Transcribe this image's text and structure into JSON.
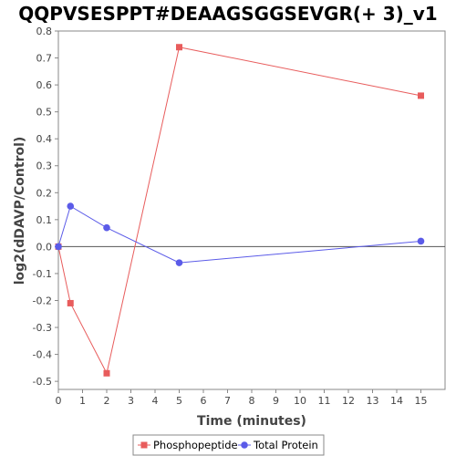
{
  "chart_data": {
    "type": "line",
    "title": "QQPVSESPPT#DEAAGSGGSEVGR(+ 3)_v1",
    "xlabel": "Time (minutes)",
    "ylabel": "log2(dDAVP/Control)",
    "xlim": [
      0,
      16
    ],
    "ylim": [
      -0.53,
      0.8
    ],
    "xticks": [
      0,
      1,
      2,
      3,
      4,
      5,
      6,
      7,
      8,
      9,
      10,
      11,
      12,
      13,
      14,
      15
    ],
    "yticks": [
      -0.5,
      -0.4,
      -0.3,
      -0.2,
      -0.1,
      0.0,
      0.1,
      0.2,
      0.3,
      0.4,
      0.5,
      0.6,
      0.7,
      0.8
    ],
    "ytick_labels": [
      "-0.5",
      "-0.4",
      "-0.3",
      "-0.2",
      "-0.1",
      "0.0",
      "0.1",
      "0.2",
      "0.3",
      "0.4",
      "0.5",
      "0.6",
      "0.7",
      "0.8"
    ],
    "grid": false,
    "zero_line": true,
    "legend_position": "bottom",
    "series": [
      {
        "name": "Phosphopeptide",
        "color": "#e85c5c",
        "marker": "square",
        "x": [
          0,
          0.5,
          2,
          5,
          15
        ],
        "y": [
          0.0,
          -0.21,
          -0.47,
          0.74,
          0.56
        ]
      },
      {
        "name": "Total Protein",
        "color": "#5b5be8",
        "marker": "circle",
        "x": [
          0,
          0.5,
          2,
          5,
          15
        ],
        "y": [
          0.0,
          0.15,
          0.07,
          -0.06,
          0.02
        ]
      }
    ]
  }
}
